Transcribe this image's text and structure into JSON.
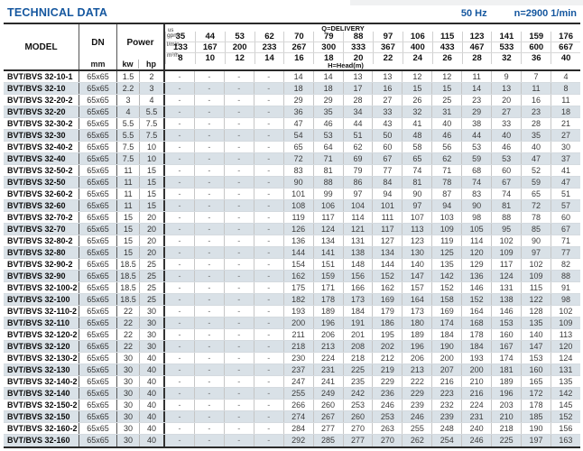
{
  "header": {
    "title": "TECHNICAL DATA",
    "frequency": "50 Hz",
    "speed": "n=2900 1/min"
  },
  "table": {
    "headers": {
      "model": "MODEL",
      "dn": "DN",
      "dn_unit": "mm",
      "power": "Power",
      "kw": "kw",
      "hp": "hp",
      "q_delivery": "Q=DELIVERY",
      "h_head": "H=Head(m)",
      "unit_gpm_top": "us",
      "unit_gpm": "gpm",
      "unit_lmin": "l/min",
      "unit_m3h": "m³/h"
    },
    "gpm": [
      "35",
      "44",
      "53",
      "62",
      "70",
      "79",
      "88",
      "97",
      "106",
      "115",
      "123",
      "141",
      "159",
      "176"
    ],
    "lmin": [
      "133",
      "167",
      "200",
      "233",
      "267",
      "300",
      "333",
      "367",
      "400",
      "433",
      "467",
      "533",
      "600",
      "667"
    ],
    "m3h": [
      "8",
      "10",
      "12",
      "14",
      "16",
      "18",
      "20",
      "22",
      "24",
      "26",
      "28",
      "32",
      "36",
      "40"
    ],
    "rows": [
      {
        "model": "BVT/BVS 32-10-1",
        "dn": "65x65",
        "kw": "1.5",
        "hp": "2",
        "head": [
          "-",
          "-",
          "-",
          "-",
          "14",
          "14",
          "13",
          "13",
          "12",
          "12",
          "11",
          "9",
          "7",
          "4"
        ]
      },
      {
        "model": "BVT/BVS 32-10",
        "dn": "65x65",
        "kw": "2.2",
        "hp": "3",
        "head": [
          "-",
          "-",
          "-",
          "-",
          "18",
          "18",
          "17",
          "16",
          "15",
          "15",
          "14",
          "13",
          "11",
          "8"
        ]
      },
      {
        "model": "BVT/BVS 32-20-2",
        "dn": "65x65",
        "kw": "3",
        "hp": "4",
        "head": [
          "-",
          "-",
          "-",
          "-",
          "29",
          "29",
          "28",
          "27",
          "26",
          "25",
          "23",
          "20",
          "16",
          "11"
        ]
      },
      {
        "model": "BVT/BVS 32-20",
        "dn": "65x65",
        "kw": "4",
        "hp": "5.5",
        "head": [
          "-",
          "-",
          "-",
          "-",
          "36",
          "35",
          "34",
          "33",
          "32",
          "31",
          "29",
          "27",
          "23",
          "18"
        ]
      },
      {
        "model": "BVT/BVS 32-30-2",
        "dn": "65x65",
        "kw": "5.5",
        "hp": "7.5",
        "head": [
          "-",
          "-",
          "-",
          "-",
          "47",
          "46",
          "44",
          "43",
          "41",
          "40",
          "38",
          "33",
          "28",
          "21"
        ]
      },
      {
        "model": "BVT/BVS 32-30",
        "dn": "65x65",
        "kw": "5.5",
        "hp": "7.5",
        "head": [
          "-",
          "-",
          "-",
          "-",
          "54",
          "53",
          "51",
          "50",
          "48",
          "46",
          "44",
          "40",
          "35",
          "27"
        ]
      },
      {
        "model": "BVT/BVS 32-40-2",
        "dn": "65x65",
        "kw": "7.5",
        "hp": "10",
        "head": [
          "-",
          "-",
          "-",
          "-",
          "65",
          "64",
          "62",
          "60",
          "58",
          "56",
          "53",
          "46",
          "40",
          "30"
        ]
      },
      {
        "model": "BVT/BVS 32-40",
        "dn": "65x65",
        "kw": "7.5",
        "hp": "10",
        "head": [
          "-",
          "-",
          "-",
          "-",
          "72",
          "71",
          "69",
          "67",
          "65",
          "62",
          "59",
          "53",
          "47",
          "37"
        ]
      },
      {
        "model": "BVT/BVS 32-50-2",
        "dn": "65x65",
        "kw": "11",
        "hp": "15",
        "head": [
          "-",
          "-",
          "-",
          "-",
          "83",
          "81",
          "79",
          "77",
          "74",
          "71",
          "68",
          "60",
          "52",
          "41"
        ]
      },
      {
        "model": "BVT/BVS 32-50",
        "dn": "65x65",
        "kw": "11",
        "hp": "15",
        "head": [
          "-",
          "-",
          "-",
          "-",
          "90",
          "88",
          "86",
          "84",
          "81",
          "78",
          "74",
          "67",
          "59",
          "47"
        ]
      },
      {
        "model": "BVT/BVS 32-60-2",
        "dn": "65x65",
        "kw": "11",
        "hp": "15",
        "head": [
          "-",
          "-",
          "-",
          "-",
          "101",
          "99",
          "97",
          "94",
          "90",
          "87",
          "83",
          "74",
          "65",
          "51"
        ]
      },
      {
        "model": "BVT/BVS 32-60",
        "dn": "65x65",
        "kw": "11",
        "hp": "15",
        "head": [
          "-",
          "-",
          "-",
          "-",
          "108",
          "106",
          "104",
          "101",
          "97",
          "94",
          "90",
          "81",
          "72",
          "57"
        ]
      },
      {
        "model": "BVT/BVS 32-70-2",
        "dn": "65x65",
        "kw": "15",
        "hp": "20",
        "head": [
          "-",
          "-",
          "-",
          "-",
          "119",
          "117",
          "114",
          "111",
          "107",
          "103",
          "98",
          "88",
          "78",
          "60"
        ]
      },
      {
        "model": "BVT/BVS 32-70",
        "dn": "65x65",
        "kw": "15",
        "hp": "20",
        "head": [
          "-",
          "-",
          "-",
          "-",
          "126",
          "124",
          "121",
          "117",
          "113",
          "109",
          "105",
          "95",
          "85",
          "67"
        ]
      },
      {
        "model": "BVT/BVS 32-80-2",
        "dn": "65x65",
        "kw": "15",
        "hp": "20",
        "head": [
          "-",
          "-",
          "-",
          "-",
          "136",
          "134",
          "131",
          "127",
          "123",
          "119",
          "114",
          "102",
          "90",
          "71"
        ]
      },
      {
        "model": "BVT/BVS 32-80",
        "dn": "65x65",
        "kw": "15",
        "hp": "20",
        "head": [
          "-",
          "-",
          "-",
          "-",
          "144",
          "141",
          "138",
          "134",
          "130",
          "125",
          "120",
          "109",
          "97",
          "77"
        ]
      },
      {
        "model": "BVT/BVS 32-90-2",
        "dn": "65x65",
        "kw": "18.5",
        "hp": "25",
        "head": [
          "-",
          "-",
          "-",
          "-",
          "154",
          "151",
          "148",
          "144",
          "140",
          "135",
          "129",
          "117",
          "102",
          "82"
        ]
      },
      {
        "model": "BVT/BVS 32-90",
        "dn": "65x65",
        "kw": "18.5",
        "hp": "25",
        "head": [
          "-",
          "-",
          "-",
          "-",
          "162",
          "159",
          "156",
          "152",
          "147",
          "142",
          "136",
          "124",
          "109",
          "88"
        ]
      },
      {
        "model": "BVT/BVS 32-100-2",
        "dn": "65x65",
        "kw": "18.5",
        "hp": "25",
        "head": [
          "-",
          "-",
          "-",
          "-",
          "175",
          "171",
          "166",
          "162",
          "157",
          "152",
          "146",
          "131",
          "115",
          "91"
        ]
      },
      {
        "model": "BVT/BVS 32-100",
        "dn": "65x65",
        "kw": "18.5",
        "hp": "25",
        "head": [
          "-",
          "-",
          "-",
          "-",
          "182",
          "178",
          "173",
          "169",
          "164",
          "158",
          "152",
          "138",
          "122",
          "98"
        ]
      },
      {
        "model": "BVT/BVS 32-110-2",
        "dn": "65x65",
        "kw": "22",
        "hp": "30",
        "head": [
          "-",
          "-",
          "-",
          "-",
          "193",
          "189",
          "184",
          "179",
          "173",
          "169",
          "164",
          "146",
          "128",
          "102"
        ]
      },
      {
        "model": "BVT/BVS 32-110",
        "dn": "65x65",
        "kw": "22",
        "hp": "30",
        "head": [
          "-",
          "-",
          "-",
          "-",
          "200",
          "196",
          "191",
          "186",
          "180",
          "174",
          "168",
          "153",
          "135",
          "109"
        ]
      },
      {
        "model": "BVT/BVS 32-120-2",
        "dn": "65x65",
        "kw": "22",
        "hp": "30",
        "head": [
          "-",
          "-",
          "-",
          "-",
          "211",
          "206",
          "201",
          "195",
          "189",
          "184",
          "178",
          "160",
          "140",
          "113"
        ]
      },
      {
        "model": "BVT/BVS 32-120",
        "dn": "65x65",
        "kw": "22",
        "hp": "30",
        "head": [
          "-",
          "-",
          "-",
          "-",
          "218",
          "213",
          "208",
          "202",
          "196",
          "190",
          "184",
          "167",
          "147",
          "120"
        ]
      },
      {
        "model": "BVT/BVS 32-130-2",
        "dn": "65x65",
        "kw": "30",
        "hp": "40",
        "head": [
          "-",
          "-",
          "-",
          "-",
          "230",
          "224",
          "218",
          "212",
          "206",
          "200",
          "193",
          "174",
          "153",
          "124"
        ]
      },
      {
        "model": "BVT/BVS 32-130",
        "dn": "65x65",
        "kw": "30",
        "hp": "40",
        "head": [
          "-",
          "-",
          "-",
          "-",
          "237",
          "231",
          "225",
          "219",
          "213",
          "207",
          "200",
          "181",
          "160",
          "131"
        ]
      },
      {
        "model": "BVT/BVS 32-140-2",
        "dn": "65x65",
        "kw": "30",
        "hp": "40",
        "head": [
          "-",
          "-",
          "-",
          "-",
          "247",
          "241",
          "235",
          "229",
          "222",
          "216",
          "210",
          "189",
          "165",
          "135"
        ]
      },
      {
        "model": "BVT/BVS 32-140",
        "dn": "65x65",
        "kw": "30",
        "hp": "40",
        "head": [
          "-",
          "-",
          "-",
          "-",
          "255",
          "249",
          "242",
          "236",
          "229",
          "223",
          "216",
          "196",
          "172",
          "142"
        ]
      },
      {
        "model": "BVT/BVS 32-150-2",
        "dn": "65x65",
        "kw": "30",
        "hp": "40",
        "head": [
          "-",
          "-",
          "-",
          "-",
          "266",
          "260",
          "253",
          "246",
          "239",
          "232",
          "224",
          "203",
          "178",
          "145"
        ]
      },
      {
        "model": "BVT/BVS 32-150",
        "dn": "65x65",
        "kw": "30",
        "hp": "40",
        "head": [
          "-",
          "-",
          "-",
          "-",
          "274",
          "267",
          "260",
          "253",
          "246",
          "239",
          "231",
          "210",
          "185",
          "152"
        ]
      },
      {
        "model": "BVT/BVS 32-160-2",
        "dn": "65x65",
        "kw": "30",
        "hp": "40",
        "head": [
          "-",
          "-",
          "-",
          "-",
          "284",
          "277",
          "270",
          "263",
          "255",
          "248",
          "240",
          "218",
          "190",
          "156"
        ]
      },
      {
        "model": "BVT/BVS 32-160",
        "dn": "65x65",
        "kw": "30",
        "hp": "40",
        "head": [
          "-",
          "-",
          "-",
          "-",
          "292",
          "285",
          "277",
          "270",
          "262",
          "254",
          "246",
          "225",
          "197",
          "163"
        ]
      }
    ]
  }
}
